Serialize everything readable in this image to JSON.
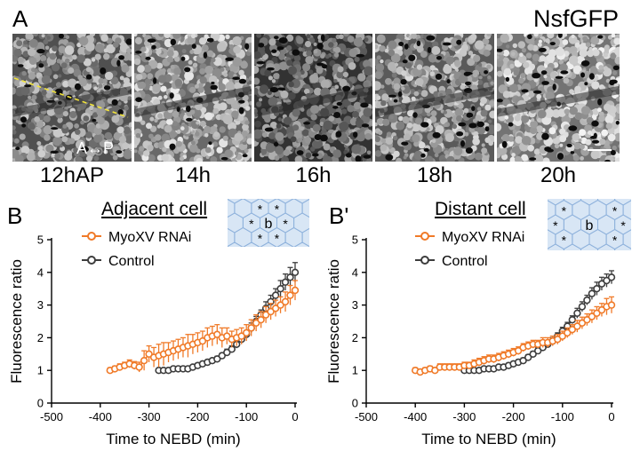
{
  "panel_a": {
    "letter": "A",
    "title": "NsfGFP",
    "axis_note": "A↔P",
    "timepoints": [
      "12hAP",
      "14h",
      "16h",
      "18h",
      "20h"
    ]
  },
  "panel_labels": {
    "b": "B",
    "b_prime": "B'"
  },
  "colors": {
    "rnai": "#f07a28",
    "control": "#3d3d3d",
    "inset_bg": "#d8e6f5",
    "inset_line": "#8fb2dc"
  },
  "chart_data": [
    {
      "type": "line",
      "title": "Adjacent cell",
      "xlabel": "Time to NEBD (min)",
      "ylabel": "Fluorescence ratio",
      "xlim": [
        -500,
        0
      ],
      "ylim": [
        0,
        5
      ],
      "xticks": [
        "-500",
        "-400",
        "-300",
        "-200",
        "-100",
        "0"
      ],
      "yticks": [
        "0",
        "1",
        "2",
        "3",
        "4",
        "5"
      ],
      "legend_position": "top-left",
      "inset": {
        "center": "b",
        "marks": [
          "*",
          "*",
          "*",
          "*",
          "*",
          "*"
        ]
      },
      "series": [
        {
          "name": "MyoXV RNAi",
          "color": "#f07a28",
          "x": [
            -380,
            -370,
            -360,
            -350,
            -340,
            -330,
            -320,
            -310,
            -300,
            -290,
            -280,
            -270,
            -260,
            -250,
            -240,
            -230,
            -220,
            -210,
            -200,
            -190,
            -180,
            -170,
            -160,
            -150,
            -140,
            -130,
            -120,
            -110,
            -100,
            -90,
            -80,
            -70,
            -60,
            -50,
            -40,
            -30,
            -20,
            -10,
            0
          ],
          "y": [
            1.0,
            1.05,
            1.1,
            1.15,
            1.2,
            1.15,
            1.1,
            1.3,
            1.5,
            1.4,
            1.45,
            1.5,
            1.55,
            1.6,
            1.65,
            1.7,
            1.75,
            1.8,
            1.85,
            1.9,
            2.0,
            2.05,
            2.1,
            2.0,
            2.05,
            1.95,
            2.0,
            2.05,
            2.15,
            2.3,
            2.45,
            2.55,
            2.7,
            2.8,
            2.9,
            3.0,
            3.1,
            3.3,
            3.45
          ],
          "err": [
            0.08,
            0.08,
            0.1,
            0.1,
            0.12,
            0.12,
            0.15,
            0.3,
            0.25,
            0.3,
            0.35,
            0.35,
            0.3,
            0.3,
            0.3,
            0.3,
            0.35,
            0.3,
            0.3,
            0.3,
            0.3,
            0.3,
            0.3,
            0.3,
            0.25,
            0.25,
            0.25,
            0.25,
            0.25,
            0.25,
            0.25,
            0.25,
            0.25,
            0.25,
            0.25,
            0.25,
            0.3,
            0.3,
            0.3
          ]
        },
        {
          "name": "Control",
          "color": "#3d3d3d",
          "x": [
            -280,
            -270,
            -260,
            -250,
            -240,
            -230,
            -220,
            -210,
            -200,
            -190,
            -180,
            -170,
            -160,
            -150,
            -140,
            -130,
            -120,
            -110,
            -100,
            -90,
            -80,
            -70,
            -60,
            -50,
            -40,
            -30,
            -20,
            -10,
            0
          ],
          "y": [
            1.0,
            1.0,
            1.0,
            1.05,
            1.05,
            1.05,
            1.05,
            1.1,
            1.15,
            1.2,
            1.25,
            1.3,
            1.35,
            1.45,
            1.55,
            1.65,
            1.8,
            1.95,
            2.1,
            2.3,
            2.5,
            2.7,
            2.9,
            3.1,
            3.3,
            3.5,
            3.7,
            3.85,
            4.0
          ],
          "err": [
            0.05,
            0.05,
            0.05,
            0.05,
            0.05,
            0.05,
            0.05,
            0.05,
            0.07,
            0.07,
            0.07,
            0.07,
            0.08,
            0.08,
            0.1,
            0.1,
            0.12,
            0.12,
            0.12,
            0.15,
            0.15,
            0.15,
            0.2,
            0.2,
            0.2,
            0.25,
            0.25,
            0.3,
            0.3
          ]
        }
      ]
    },
    {
      "type": "line",
      "title": "Distant cell",
      "xlabel": "Time to NEBD (min)",
      "ylabel": "Fluorescence ratio",
      "xlim": [
        -500,
        0
      ],
      "ylim": [
        0,
        5
      ],
      "xticks": [
        "-500",
        "-400",
        "-300",
        "-200",
        "-100",
        "0"
      ],
      "yticks": [
        "0",
        "1",
        "2",
        "3",
        "4",
        "5"
      ],
      "legend_position": "top-left",
      "inset": {
        "center": "b",
        "marks": [
          "*",
          "*",
          "*",
          "*",
          "*",
          "*"
        ]
      },
      "series": [
        {
          "name": "MyoXV RNAi",
          "color": "#f07a28",
          "x": [
            -400,
            -390,
            -380,
            -370,
            -360,
            -350,
            -340,
            -330,
            -320,
            -310,
            -300,
            -290,
            -280,
            -270,
            -260,
            -250,
            -240,
            -230,
            -220,
            -210,
            -200,
            -190,
            -180,
            -170,
            -160,
            -150,
            -140,
            -130,
            -120,
            -110,
            -100,
            -90,
            -80,
            -70,
            -60,
            -50,
            -40,
            -30,
            -20,
            -10,
            0
          ],
          "y": [
            1.0,
            0.95,
            1.0,
            1.05,
            1.0,
            1.1,
            1.1,
            1.1,
            1.1,
            1.1,
            1.15,
            1.15,
            1.2,
            1.25,
            1.3,
            1.35,
            1.35,
            1.4,
            1.45,
            1.5,
            1.55,
            1.6,
            1.7,
            1.75,
            1.8,
            1.8,
            1.85,
            1.85,
            1.9,
            1.95,
            2.05,
            2.15,
            2.25,
            2.35,
            2.45,
            2.55,
            2.65,
            2.75,
            2.85,
            2.95,
            3.0
          ],
          "err": [
            0.08,
            0.08,
            0.08,
            0.08,
            0.08,
            0.1,
            0.1,
            0.1,
            0.1,
            0.1,
            0.1,
            0.1,
            0.12,
            0.12,
            0.12,
            0.12,
            0.12,
            0.12,
            0.12,
            0.12,
            0.12,
            0.12,
            0.12,
            0.12,
            0.12,
            0.12,
            0.15,
            0.15,
            0.15,
            0.15,
            0.15,
            0.15,
            0.15,
            0.18,
            0.18,
            0.18,
            0.2,
            0.2,
            0.2,
            0.25,
            0.25
          ]
        },
        {
          "name": "Control",
          "color": "#3d3d3d",
          "x": [
            -300,
            -290,
            -280,
            -270,
            -260,
            -250,
            -240,
            -230,
            -220,
            -210,
            -200,
            -190,
            -180,
            -170,
            -160,
            -150,
            -140,
            -130,
            -120,
            -110,
            -100,
            -90,
            -80,
            -70,
            -60,
            -50,
            -40,
            -30,
            -20,
            -10,
            0
          ],
          "y": [
            1.0,
            1.0,
            1.0,
            1.0,
            1.05,
            1.05,
            1.05,
            1.1,
            1.1,
            1.15,
            1.2,
            1.25,
            1.3,
            1.4,
            1.5,
            1.6,
            1.7,
            1.8,
            1.9,
            2.05,
            2.2,
            2.35,
            2.55,
            2.75,
            2.95,
            3.15,
            3.35,
            3.5,
            3.65,
            3.75,
            3.85
          ],
          "err": [
            0.05,
            0.05,
            0.05,
            0.05,
            0.05,
            0.05,
            0.05,
            0.05,
            0.07,
            0.07,
            0.07,
            0.07,
            0.08,
            0.08,
            0.08,
            0.1,
            0.1,
            0.1,
            0.1,
            0.1,
            0.12,
            0.12,
            0.12,
            0.15,
            0.15,
            0.15,
            0.18,
            0.2,
            0.2,
            0.2,
            0.2
          ]
        }
      ]
    }
  ]
}
